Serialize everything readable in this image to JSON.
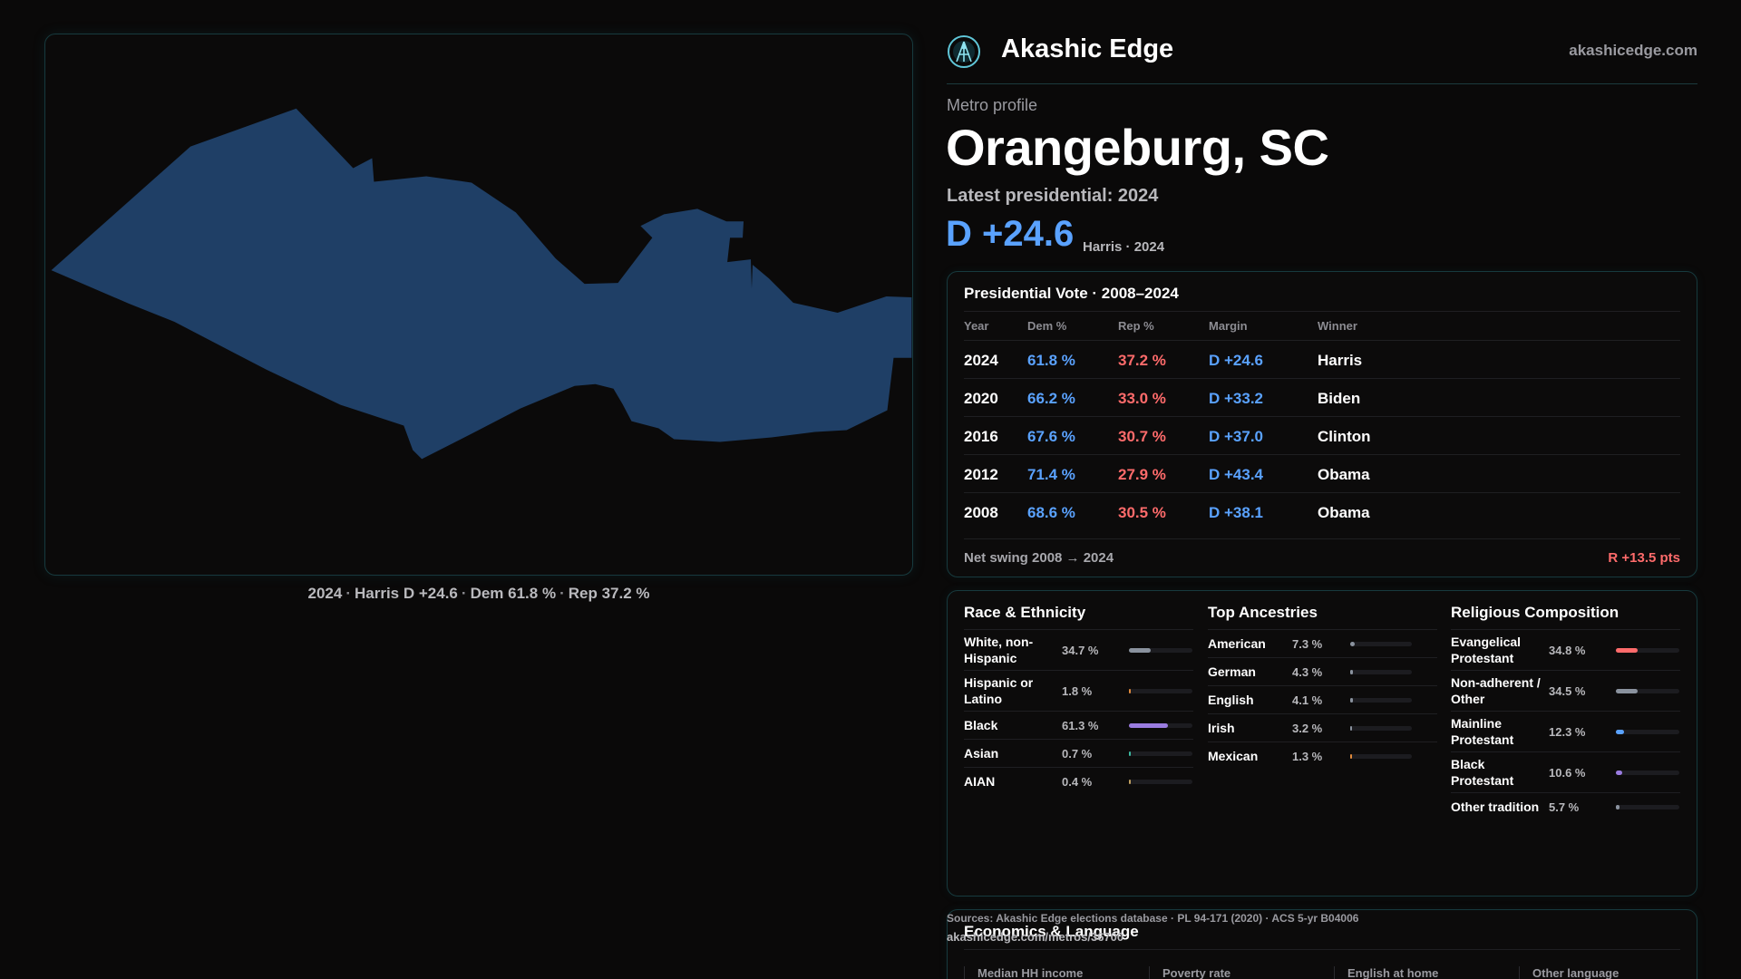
{
  "map": {
    "fill_color": "#1f3f66",
    "caption": {
      "year": "2024",
      "winner_margin": "Harris D +24.6",
      "dem": "Dem 61.8 %",
      "rep": "Rep 37.2 %",
      "separator": "·"
    }
  },
  "header": {
    "brand": "Akashic Edge",
    "site": "akashicedge.com"
  },
  "profile": {
    "eyebrow": "Metro profile",
    "title": "Orangeburg, SC",
    "subtitle": "Latest presidential: 2024",
    "margin": "D +24.6",
    "margin_note": "Harris · 2024"
  },
  "vote": {
    "title": "Presidential Vote · 2008–2024",
    "columns": [
      "Year",
      "Dem %",
      "Rep %",
      "Margin",
      "Winner"
    ],
    "rows": [
      {
        "year": "2024",
        "dem": "61.8 %",
        "rep": "37.2 %",
        "margin": "D +24.6",
        "winner": "Harris"
      },
      {
        "year": "2020",
        "dem": "66.2 %",
        "rep": "33.0 %",
        "margin": "D +33.2",
        "winner": "Biden"
      },
      {
        "year": "2016",
        "dem": "67.6 %",
        "rep": "30.7 %",
        "margin": "D +37.0",
        "winner": "Clinton"
      },
      {
        "year": "2012",
        "dem": "71.4 %",
        "rep": "27.9 %",
        "margin": "D +43.4",
        "winner": "Obama"
      },
      {
        "year": "2008",
        "dem": "68.6 %",
        "rep": "30.5 %",
        "margin": "D +38.1",
        "winner": "Obama"
      }
    ],
    "swing_label": "Net swing 2008 → 2024",
    "swing_value": "R +13.5 pts",
    "dem_color": "#5aa2ff",
    "rep_color": "#ff6b6b"
  },
  "race": {
    "title": "Race & Ethnicity",
    "rows": [
      {
        "label": "White, non-Hispanic",
        "value": "34.7 %",
        "fraction": 0.347,
        "color": "#8a929e"
      },
      {
        "label": "Hispanic or Latino",
        "value": "1.8 %",
        "fraction": 0.018,
        "color": "#e08a3c"
      },
      {
        "label": "Black",
        "value": "61.3 %",
        "fraction": 0.613,
        "color": "#9a7ce0"
      },
      {
        "label": "Asian",
        "value": "0.7 %",
        "fraction": 0.007,
        "color": "#3cb9a0"
      },
      {
        "label": "AIAN",
        "value": "0.4 %",
        "fraction": 0.004,
        "color": "#c0a060"
      }
    ]
  },
  "ancestry": {
    "title": "Top Ancestries",
    "rows": [
      {
        "label": "American",
        "value": "7.3 %",
        "fraction": 0.073,
        "color": "#8a929e"
      },
      {
        "label": "German",
        "value": "4.3 %",
        "fraction": 0.043,
        "color": "#8a929e"
      },
      {
        "label": "English",
        "value": "4.1 %",
        "fraction": 0.041,
        "color": "#8a929e"
      },
      {
        "label": "Irish",
        "value": "3.2 %",
        "fraction": 0.032,
        "color": "#8a929e"
      },
      {
        "label": "Mexican",
        "value": "1.3 %",
        "fraction": 0.013,
        "color": "#e08a3c"
      }
    ]
  },
  "religion": {
    "title": "Religious Composition",
    "rows": [
      {
        "label": "Evangelical Protestant",
        "value": "34.8 %",
        "fraction": 0.348,
        "color": "#ff6b6b"
      },
      {
        "label": "Non-adherent / Other",
        "value": "34.5 %",
        "fraction": 0.345,
        "color": "#8a929e"
      },
      {
        "label": "Mainline Protestant",
        "value": "12.3 %",
        "fraction": 0.123,
        "color": "#5aa2ff"
      },
      {
        "label": "Black Protestant",
        "value": "10.6 %",
        "fraction": 0.106,
        "color": "#9a7ce0"
      },
      {
        "label": "Other tradition",
        "value": "5.7 %",
        "fraction": 0.057,
        "color": "#8a929e"
      }
    ]
  },
  "economics": {
    "title": "Economics & Language",
    "columns": [
      "Median HH income",
      "Poverty rate",
      "English at home",
      "Other language"
    ]
  },
  "sources": {
    "text": "Sources: Akashic Edge elections database · PL 94-171 (2020) · ACS 5-yr B04006",
    "url": "akashicedge.com/metros/36700"
  }
}
